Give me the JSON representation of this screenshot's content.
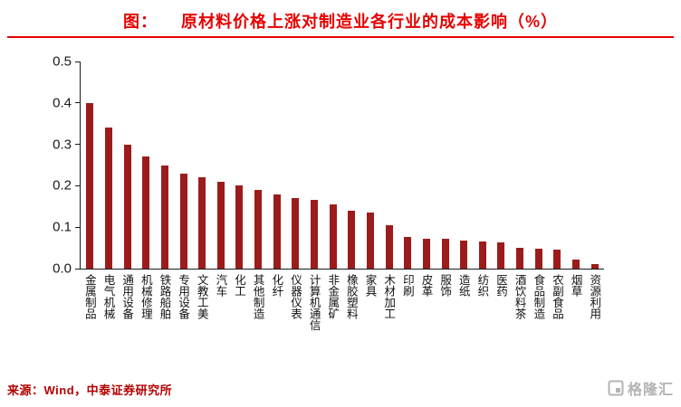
{
  "title": {
    "prefix": "图：",
    "text": "原材料价格上涨对制造业各行业的成本影响（%）"
  },
  "source": "来源：Wind，中泰证券研究所",
  "watermark": "格隆汇",
  "colors": {
    "title_red": "#e60000",
    "rule_red": "#e60000",
    "bar_red": "#9c1c1c",
    "source_red": "#b30000",
    "watermark_gray": "#b3b3b3"
  },
  "chart_data": {
    "type": "bar",
    "title": "原材料价格上涨对制造业各行业的成本影响（%）",
    "categories": [
      "金属制品",
      "电气机械",
      "通用设备",
      "机械修理",
      "铁路船舶",
      "专用设备",
      "文教工美",
      "汽车",
      "化工",
      "其他制造",
      "化纤",
      "仪器仪表",
      "计算机通信",
      "非金属矿",
      "橡胶塑料",
      "家具",
      "木材加工",
      "印刷",
      "皮革",
      "服饰",
      "造纸",
      "纺织",
      "医药",
      "酒饮料茶",
      "食品制造",
      "农副食品",
      "烟草",
      "资源利用"
    ],
    "values": [
      0.4,
      0.34,
      0.3,
      0.27,
      0.25,
      0.23,
      0.22,
      0.21,
      0.2,
      0.19,
      0.18,
      0.17,
      0.165,
      0.155,
      0.14,
      0.135,
      0.105,
      0.076,
      0.073,
      0.071,
      0.068,
      0.066,
      0.064,
      0.051,
      0.049,
      0.046,
      0.021,
      0.012
    ],
    "xlabel": "",
    "ylabel": "",
    "ylim": [
      0,
      0.5
    ],
    "yticks": [
      0.0,
      0.1,
      0.2,
      0.3,
      0.4,
      0.5
    ],
    "ytick_labels": [
      "0.0",
      "0.1",
      "0.2",
      "0.3",
      "0.4",
      "0.5"
    ],
    "grid": false,
    "legend": false,
    "bar_color": "#9c1c1c"
  }
}
